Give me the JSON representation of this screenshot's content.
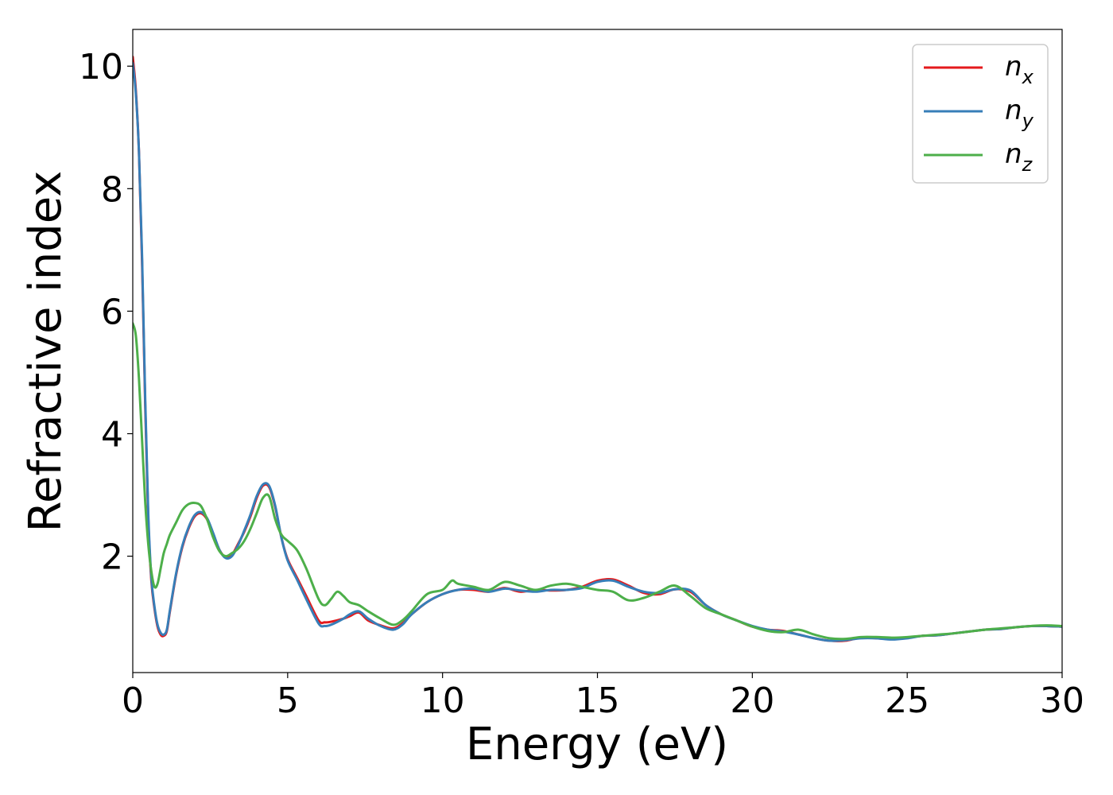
{
  "chart_data": {
    "type": "line",
    "title": "",
    "xlabel": "Energy (eV)",
    "ylabel": "Refractive index",
    "xlim": [
      0,
      30
    ],
    "ylim": [
      0.1,
      10.6
    ],
    "xticks": [
      0,
      5,
      10,
      15,
      20,
      25,
      30
    ],
    "yticks": [
      2,
      4,
      6,
      8,
      10
    ],
    "grid": false,
    "legend_position": "top-right",
    "series": [
      {
        "name": "n_x",
        "label_base": "n",
        "label_sub": "x",
        "color": "#e41a1c",
        "x": [
          0,
          0.1,
          0.2,
          0.3,
          0.4,
          0.5,
          0.6,
          0.7,
          0.8,
          0.9,
          1.0,
          1.1,
          1.2,
          1.4,
          1.6,
          1.8,
          2.0,
          2.2,
          2.4,
          2.6,
          2.8,
          3.0,
          3.2,
          3.4,
          3.6,
          3.8,
          4.0,
          4.2,
          4.4,
          4.6,
          4.8,
          5.0,
          5.3,
          5.6,
          6.0,
          6.2,
          6.4,
          6.8,
          7.0,
          7.3,
          7.6,
          8.0,
          8.4,
          8.7,
          9.0,
          9.5,
          10.0,
          10.5,
          11.0,
          11.5,
          12.0,
          12.5,
          13.0,
          13.5,
          14.0,
          14.5,
          15.0,
          15.5,
          16.0,
          16.5,
          17.0,
          17.5,
          18.0,
          18.5,
          19.0,
          19.5,
          20.0,
          20.5,
          21.0,
          21.5,
          22.0,
          22.5,
          23.0,
          23.5,
          24.0,
          24.5,
          25.0,
          25.5,
          26.0,
          26.5,
          27.0,
          27.5,
          28.0,
          28.5,
          29.0,
          29.5,
          30.0
        ],
        "y": [
          10.15,
          9.6,
          8.6,
          6.8,
          4.5,
          2.6,
          1.6,
          1.15,
          0.85,
          0.72,
          0.7,
          0.78,
          1.1,
          1.7,
          2.15,
          2.45,
          2.65,
          2.7,
          2.6,
          2.35,
          2.1,
          1.98,
          2.02,
          2.2,
          2.4,
          2.65,
          2.95,
          3.15,
          3.13,
          2.8,
          2.3,
          1.95,
          1.65,
          1.35,
          0.95,
          0.92,
          0.93,
          0.98,
          1.02,
          1.08,
          0.95,
          0.87,
          0.82,
          0.9,
          1.05,
          1.25,
          1.38,
          1.45,
          1.45,
          1.42,
          1.48,
          1.42,
          1.45,
          1.44,
          1.45,
          1.5,
          1.6,
          1.62,
          1.52,
          1.4,
          1.38,
          1.46,
          1.42,
          1.2,
          1.05,
          0.95,
          0.85,
          0.8,
          0.78,
          0.72,
          0.66,
          0.62,
          0.62,
          0.67,
          0.66,
          0.65,
          0.67,
          0.7,
          0.71,
          0.74,
          0.77,
          0.8,
          0.81,
          0.84,
          0.86,
          0.86,
          0.85
        ]
      },
      {
        "name": "n_y",
        "label_base": "n",
        "label_sub": "y",
        "color": "#377eb8",
        "x": [
          0,
          0.1,
          0.2,
          0.3,
          0.4,
          0.5,
          0.6,
          0.7,
          0.8,
          0.9,
          1.0,
          1.1,
          1.2,
          1.4,
          1.6,
          1.8,
          2.0,
          2.2,
          2.4,
          2.6,
          2.8,
          3.0,
          3.2,
          3.4,
          3.6,
          3.8,
          4.0,
          4.2,
          4.4,
          4.6,
          4.8,
          5.0,
          5.3,
          5.6,
          6.0,
          6.2,
          6.4,
          6.8,
          7.0,
          7.3,
          7.6,
          8.0,
          8.4,
          8.7,
          9.0,
          9.5,
          10.0,
          10.5,
          11.0,
          11.5,
          12.0,
          12.5,
          13.0,
          13.5,
          14.0,
          14.5,
          15.0,
          15.5,
          16.0,
          16.5,
          17.0,
          17.5,
          18.0,
          18.5,
          19.0,
          19.5,
          20.0,
          20.5,
          21.0,
          21.5,
          22.0,
          22.5,
          23.0,
          23.5,
          24.0,
          24.5,
          25.0,
          25.5,
          26.0,
          26.5,
          27.0,
          27.5,
          28.0,
          28.5,
          29.0,
          29.5,
          30.0
        ],
        "y": [
          10.05,
          9.55,
          8.6,
          6.9,
          4.6,
          2.7,
          1.65,
          1.18,
          0.88,
          0.75,
          0.72,
          0.8,
          1.12,
          1.72,
          2.17,
          2.47,
          2.67,
          2.72,
          2.62,
          2.37,
          2.1,
          1.97,
          2.0,
          2.18,
          2.42,
          2.68,
          2.98,
          3.17,
          3.15,
          2.82,
          2.3,
          1.93,
          1.62,
          1.3,
          0.9,
          0.86,
          0.88,
          0.98,
          1.05,
          1.1,
          0.98,
          0.86,
          0.8,
          0.88,
          1.05,
          1.25,
          1.38,
          1.45,
          1.47,
          1.42,
          1.47,
          1.44,
          1.42,
          1.45,
          1.45,
          1.48,
          1.58,
          1.6,
          1.5,
          1.42,
          1.4,
          1.46,
          1.44,
          1.2,
          1.05,
          0.95,
          0.86,
          0.8,
          0.77,
          0.72,
          0.66,
          0.62,
          0.63,
          0.66,
          0.66,
          0.64,
          0.66,
          0.7,
          0.71,
          0.74,
          0.77,
          0.8,
          0.81,
          0.84,
          0.86,
          0.86,
          0.85
        ]
      },
      {
        "name": "n_z",
        "label_base": "n",
        "label_sub": "z",
        "color": "#4daf4a",
        "x": [
          0,
          0.1,
          0.2,
          0.3,
          0.4,
          0.5,
          0.6,
          0.7,
          0.8,
          0.9,
          1.0,
          1.1,
          1.2,
          1.4,
          1.6,
          1.8,
          2.0,
          2.2,
          2.4,
          2.6,
          2.8,
          3.0,
          3.2,
          3.4,
          3.6,
          3.8,
          4.0,
          4.2,
          4.4,
          4.6,
          4.8,
          5.0,
          5.3,
          5.6,
          6.0,
          6.2,
          6.4,
          6.6,
          6.8,
          7.0,
          7.3,
          7.6,
          8.0,
          8.4,
          8.7,
          9.0,
          9.5,
          10.0,
          10.3,
          10.5,
          11.0,
          11.5,
          12.0,
          12.5,
          13.0,
          13.5,
          14.0,
          14.5,
          15.0,
          15.5,
          16.0,
          16.5,
          17.0,
          17.5,
          18.0,
          18.5,
          19.0,
          19.5,
          20.0,
          20.5,
          21.0,
          21.5,
          22.0,
          22.5,
          23.0,
          23.5,
          24.0,
          24.5,
          25.0,
          25.5,
          26.0,
          26.5,
          27.0,
          27.5,
          28.0,
          28.5,
          29.0,
          29.5,
          30.0
        ],
        "y": [
          5.8,
          5.6,
          4.9,
          3.9,
          2.9,
          2.2,
          1.75,
          1.5,
          1.55,
          1.8,
          2.05,
          2.2,
          2.35,
          2.55,
          2.75,
          2.85,
          2.87,
          2.82,
          2.6,
          2.3,
          2.08,
          2.0,
          2.05,
          2.12,
          2.25,
          2.45,
          2.7,
          2.95,
          2.98,
          2.6,
          2.35,
          2.25,
          2.1,
          1.8,
          1.3,
          1.2,
          1.3,
          1.42,
          1.35,
          1.25,
          1.2,
          1.1,
          0.98,
          0.88,
          0.95,
          1.1,
          1.38,
          1.45,
          1.6,
          1.55,
          1.5,
          1.45,
          1.58,
          1.52,
          1.45,
          1.52,
          1.55,
          1.5,
          1.45,
          1.42,
          1.28,
          1.32,
          1.42,
          1.52,
          1.35,
          1.15,
          1.05,
          0.95,
          0.85,
          0.78,
          0.76,
          0.8,
          0.72,
          0.66,
          0.65,
          0.68,
          0.68,
          0.67,
          0.68,
          0.7,
          0.72,
          0.74,
          0.77,
          0.8,
          0.82,
          0.84,
          0.86,
          0.87,
          0.86
        ]
      }
    ]
  }
}
